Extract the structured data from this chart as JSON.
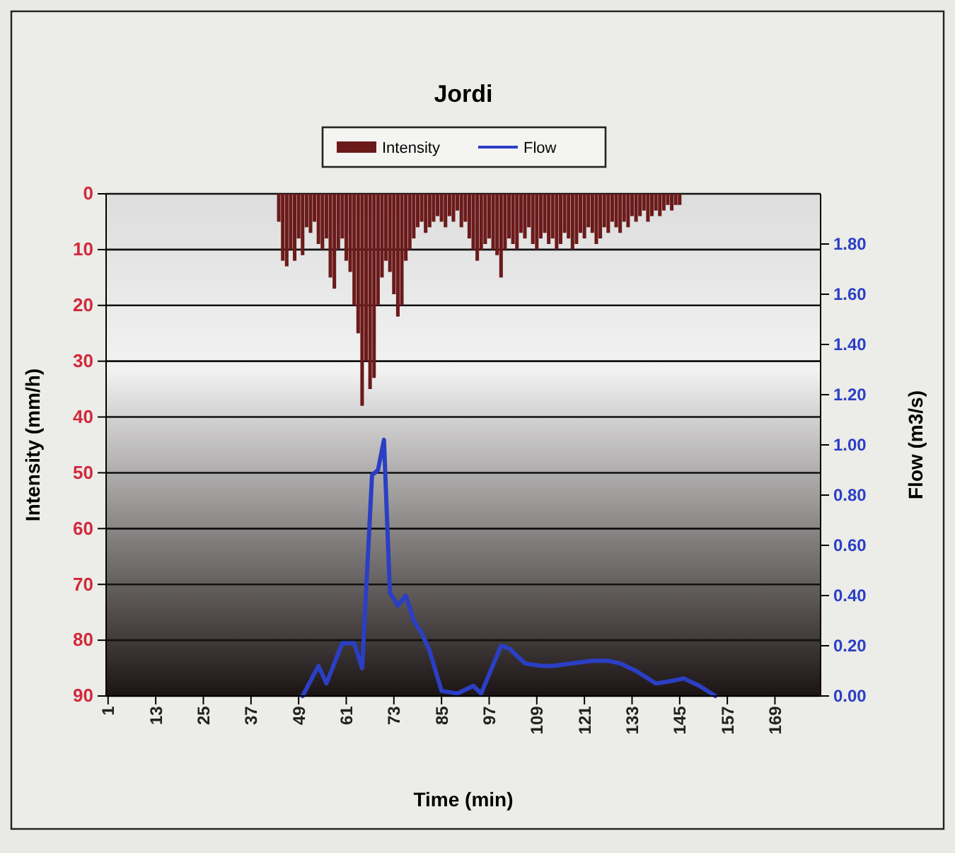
{
  "chart_data": {
    "type": "bar",
    "title": "Jordi",
    "xlabel": "Time (min)",
    "ylabel": "Intensity (mm/h)",
    "y2label": "Flow (m3/s)",
    "xlim": [
      0.5,
      180.5
    ],
    "xticks": [
      1,
      13,
      25,
      37,
      49,
      61,
      73,
      85,
      97,
      109,
      121,
      133,
      145,
      157,
      169
    ],
    "ylim": [
      90,
      0
    ],
    "yticks": [
      0,
      10,
      20,
      30,
      40,
      50,
      60,
      70,
      80,
      90
    ],
    "y2lim": [
      0,
      2.0
    ],
    "y2ticks": [
      {
        "value": 0,
        "label": "0.00"
      },
      {
        "value": 0.2,
        "label": "0.20"
      },
      {
        "value": 0.4,
        "label": "0.40"
      },
      {
        "value": 0.6,
        "label": "0.60"
      },
      {
        "value": 0.8,
        "label": "0.80"
      },
      {
        "value": 1.0,
        "label": "1.00"
      },
      {
        "value": 1.2,
        "label": "1.20"
      },
      {
        "value": 1.4,
        "label": "1.40"
      },
      {
        "value": 1.6,
        "label": "1.60"
      },
      {
        "value": 1.8,
        "label": "1.80"
      }
    ],
    "grid": "y",
    "legend": "top",
    "series": [
      {
        "name": "Intensity",
        "color": "#6b1a1a",
        "x": [
          44,
          45,
          46,
          47,
          48,
          49,
          50,
          51,
          52,
          53,
          54,
          55,
          56,
          57,
          58,
          59,
          60,
          61,
          62,
          63,
          64,
          65,
          66,
          67,
          68,
          69,
          70,
          71,
          72,
          73,
          74,
          75,
          76,
          77,
          78,
          79,
          80,
          81,
          82,
          83,
          84,
          85,
          86,
          87,
          88,
          89,
          90,
          91,
          92,
          93,
          94,
          95,
          96,
          97,
          98,
          99,
          100,
          101,
          102,
          103,
          104,
          105,
          106,
          107,
          108,
          109,
          110,
          111,
          112,
          113,
          114,
          115,
          116,
          117,
          118,
          119,
          120,
          121,
          122,
          123,
          124,
          125,
          126,
          127,
          128,
          129,
          130,
          131,
          132,
          133,
          134,
          135,
          136,
          137,
          138,
          139,
          140,
          141,
          142,
          143,
          144,
          145
        ],
        "values": [
          5,
          12,
          13,
          10,
          12,
          8,
          11,
          6,
          7,
          5,
          9,
          10,
          8,
          15,
          17,
          10,
          8,
          12,
          14,
          20,
          25,
          38,
          30,
          35,
          33,
          20,
          15,
          12,
          14,
          18,
          22,
          20,
          12,
          10,
          8,
          6,
          5,
          7,
          6,
          5,
          4,
          5,
          6,
          4,
          5,
          3,
          6,
          5,
          8,
          10,
          12,
          10,
          9,
          8,
          10,
          11,
          15,
          10,
          8,
          9,
          10,
          7,
          8,
          6,
          9,
          10,
          8,
          7,
          9,
          8,
          10,
          9,
          7,
          8,
          10,
          9,
          7,
          8,
          6,
          7,
          9,
          8,
          6,
          7,
          5,
          6,
          7,
          5,
          6,
          4,
          5,
          4,
          3,
          5,
          4,
          3,
          4,
          3,
          2,
          3,
          2,
          2
        ]
      },
      {
        "name": "Flow",
        "type": "line",
        "axis": "y2",
        "color": "#2b3fc4",
        "x": [
          50,
          54,
          56,
          60,
          63,
          65,
          67.5,
          69,
          70.5,
          72,
          74,
          76,
          78,
          80,
          82,
          85,
          89,
          93,
          95,
          100,
          102,
          106,
          110,
          113,
          118,
          123,
          127,
          130,
          134,
          139,
          143,
          146,
          150,
          154
        ],
        "values": [
          0,
          0.12,
          0.05,
          0.21,
          0.21,
          0.11,
          0.88,
          0.9,
          1.02,
          0.41,
          0.36,
          0.4,
          0.3,
          0.25,
          0.18,
          0.02,
          0.01,
          0.04,
          0.01,
          0.2,
          0.19,
          0.13,
          0.12,
          0.12,
          0.13,
          0.14,
          0.14,
          0.13,
          0.1,
          0.05,
          0.06,
          0.07,
          0.04,
          0
        ]
      }
    ]
  }
}
